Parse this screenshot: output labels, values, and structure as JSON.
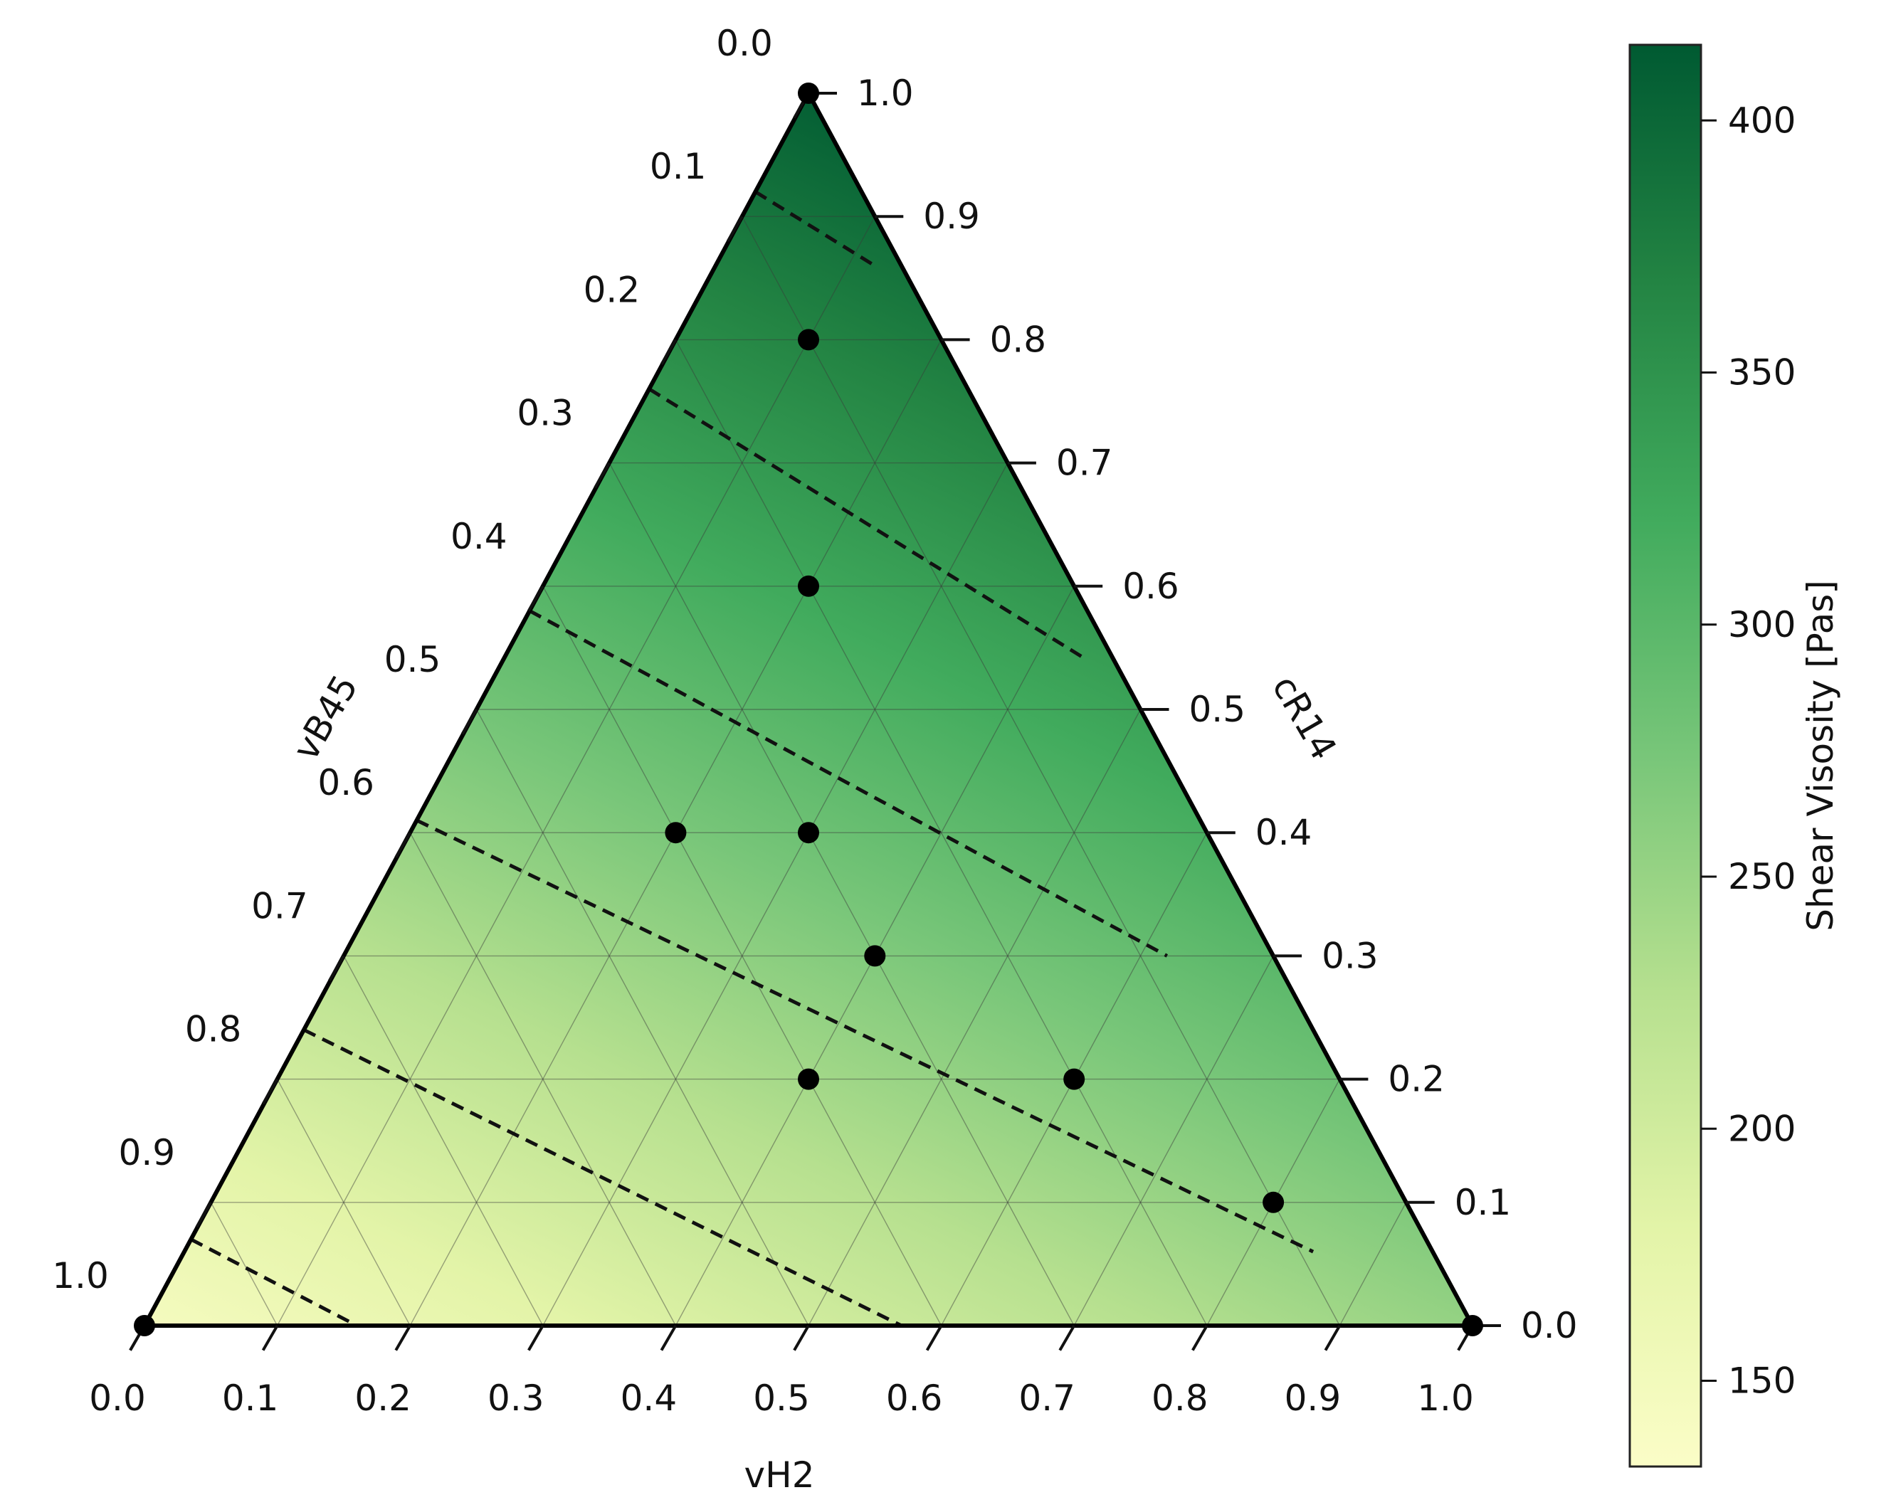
{
  "chart_data": {
    "type": "ternary-heatmap",
    "axes": {
      "bottom": {
        "label": "vH2",
        "ticks": [
          "0.0",
          "0.1",
          "0.2",
          "0.3",
          "0.4",
          "0.5",
          "0.6",
          "0.7",
          "0.8",
          "0.9",
          "1.0"
        ]
      },
      "left": {
        "label": "vB45",
        "ticks": [
          "0.0",
          "0.1",
          "0.2",
          "0.3",
          "0.4",
          "0.5",
          "0.6",
          "0.7",
          "0.8",
          "0.9",
          "1.0"
        ]
      },
      "right": {
        "label": "cR14",
        "ticks": [
          "0.0",
          "0.1",
          "0.2",
          "0.3",
          "0.4",
          "0.5",
          "0.6",
          "0.7",
          "0.8",
          "0.9",
          "1.0"
        ]
      }
    },
    "grid": true,
    "points": [
      {
        "vH2": 0.0,
        "cR14": 0.0
      },
      {
        "vH2": 1.0,
        "cR14": 0.0
      },
      {
        "vH2": 0.0,
        "cR14": 1.0
      },
      {
        "vH2": 0.1,
        "cR14": 0.8
      },
      {
        "vH2": 0.2,
        "cR14": 0.6
      },
      {
        "vH2": 0.2,
        "cR14": 0.4
      },
      {
        "vH2": 0.3,
        "cR14": 0.4
      },
      {
        "vH2": 0.4,
        "cR14": 0.3
      },
      {
        "vH2": 0.4,
        "cR14": 0.2
      },
      {
        "vH2": 0.6,
        "cR14": 0.2
      },
      {
        "vH2": 0.8,
        "cR14": 0.1
      }
    ],
    "contours": [
      {
        "start": {
          "vH2": 0.0,
          "cR14": 0.92
        },
        "end": {
          "vH2": 0.12,
          "cR14": 0.86
        }
      },
      {
        "start": {
          "vH2": 0.0,
          "cR14": 0.76
        },
        "end": {
          "vH2": 0.44,
          "cR14": 0.54
        }
      },
      {
        "start": {
          "vH2": 0.0,
          "cR14": 0.58
        },
        "end": {
          "vH2": 0.62,
          "cR14": 0.3
        }
      },
      {
        "start": {
          "vH2": 0.0,
          "cR14": 0.41
        },
        "end": {
          "vH2": 0.85,
          "cR14": 0.06
        }
      },
      {
        "start": {
          "vH2": 0.0,
          "cR14": 0.24
        },
        "end": {
          "vH2": 0.57,
          "cR14": 0.0
        }
      },
      {
        "start": {
          "vH2": 0.0,
          "cR14": 0.07
        },
        "end": {
          "vH2": 0.16,
          "cR14": 0.0
        }
      }
    ],
    "colorbar": {
      "label": "Shear Visosity  [Pas]",
      "ticks": [
        "150",
        "200",
        "250",
        "300",
        "350",
        "400"
      ],
      "range": [
        133,
        415
      ],
      "colors": [
        "#fbfdc7",
        "#e3f4a8",
        "#b6e08f",
        "#78c679",
        "#41ab5d",
        "#238443",
        "#005a32"
      ]
    },
    "field": {
      "base": 145,
      "per_cR14": 265,
      "per_vH2": 108
    }
  }
}
